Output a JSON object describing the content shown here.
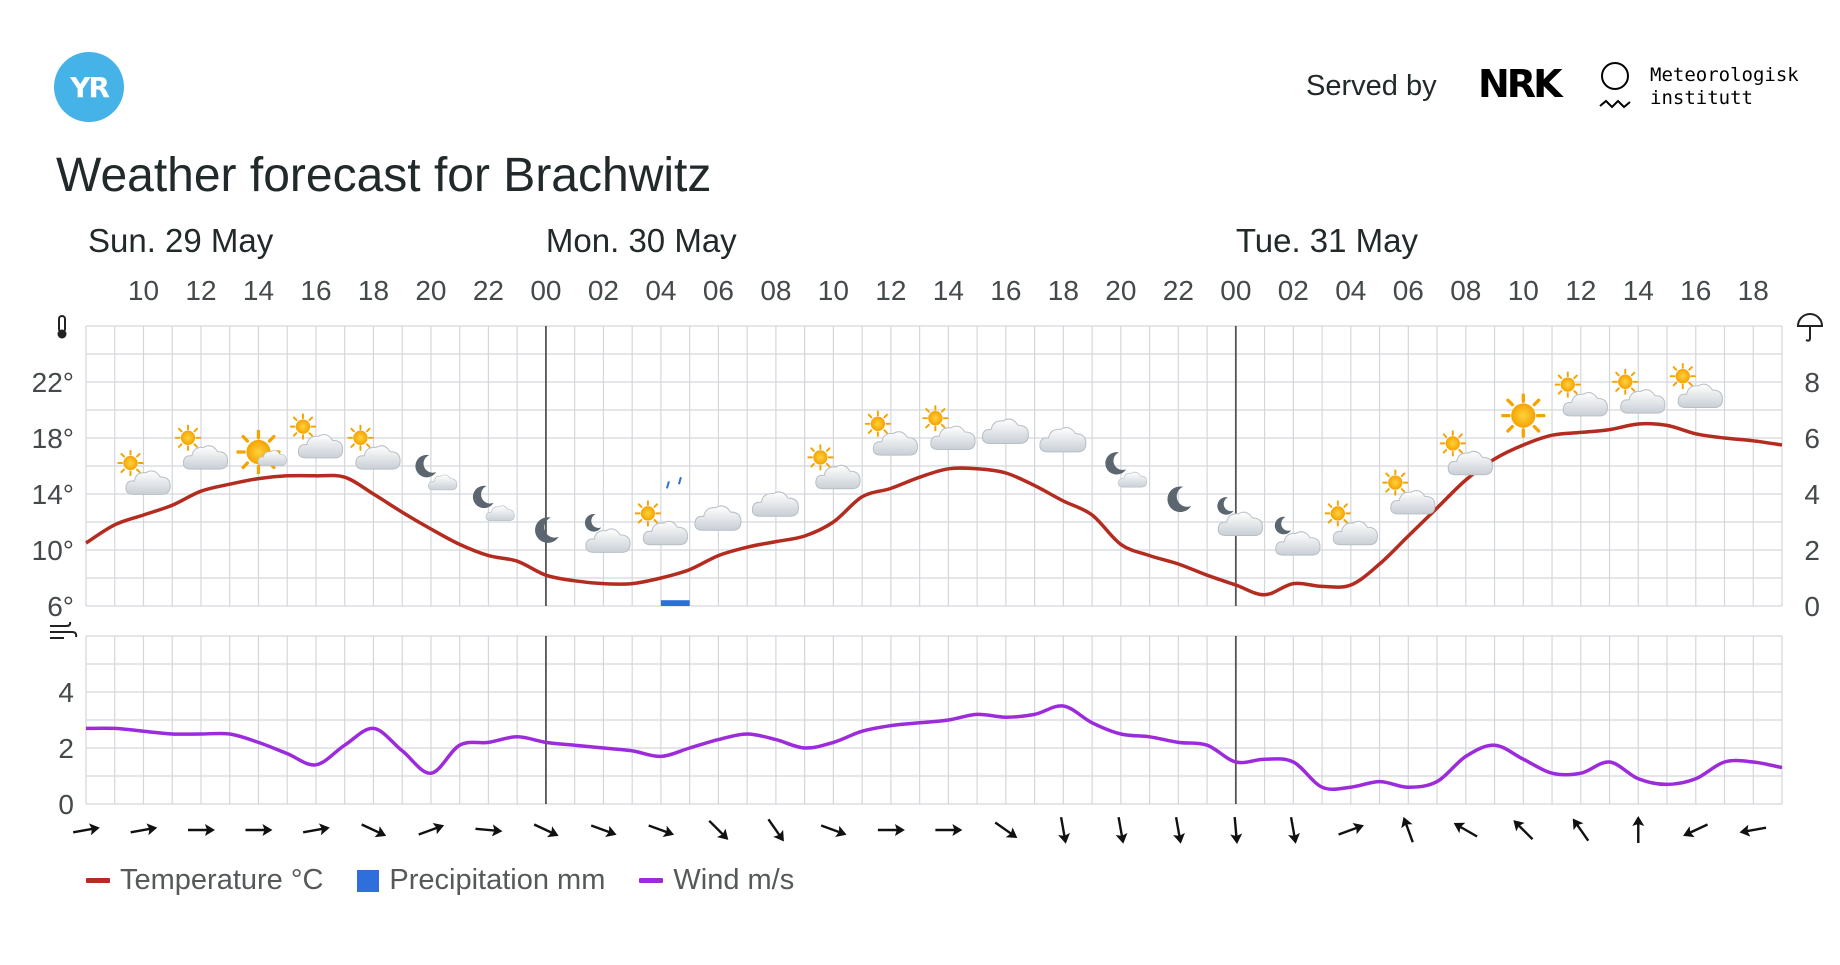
{
  "header": {
    "logo_text": "YR",
    "served_by": "Served by",
    "nrk_logo": "NRK",
    "met_lines": [
      "Meteorologisk",
      "institutt"
    ]
  },
  "title": "Weather forecast for Brachwitz",
  "legend": [
    {
      "label": "Temperature °C",
      "color": "#b42b20",
      "kind": "line"
    },
    {
      "label": "Precipitation mm",
      "color": "#2e6fdb",
      "kind": "box"
    },
    {
      "label": "Wind m/s",
      "color": "#9c2bdb",
      "kind": "line"
    }
  ],
  "chart_data": {
    "type": "line",
    "days": [
      {
        "label": "Sun. 29 May",
        "hour": 9
      },
      {
        "label": "Mon. 30 May",
        "hour": 24
      },
      {
        "label": "Tue. 31 May",
        "hour": 48
      }
    ],
    "hour_range": [
      8,
      67
    ],
    "hour_ticks": [
      "10",
      "12",
      "14",
      "16",
      "18",
      "20",
      "22",
      "00",
      "02",
      "04",
      "06",
      "08",
      "10",
      "12",
      "14",
      "16",
      "18",
      "20",
      "22",
      "00",
      "02",
      "04",
      "06",
      "08",
      "10",
      "12",
      "14",
      "16",
      "18"
    ],
    "temperature": {
      "name": "Temperature °C",
      "ylim": [
        6,
        26
      ],
      "y_ticks": [
        "22°",
        "18°",
        "14°",
        "10°",
        "6°"
      ],
      "x": [
        8,
        9,
        10,
        11,
        12,
        13,
        14,
        15,
        16,
        17,
        18,
        19,
        20,
        21,
        22,
        23,
        24,
        25,
        26,
        27,
        28,
        29,
        30,
        31,
        32,
        33,
        34,
        35,
        36,
        37,
        38,
        39,
        40,
        41,
        42,
        43,
        44,
        45,
        46,
        47,
        48,
        49,
        50,
        51,
        52,
        53,
        54,
        55,
        56,
        57,
        58,
        59,
        60,
        61,
        62,
        63,
        64,
        65,
        66,
        67
      ],
      "values": [
        10.5,
        11.8,
        12.5,
        13.2,
        14.2,
        14.7,
        15.1,
        15.3,
        15.3,
        15.2,
        14.0,
        12.7,
        11.5,
        10.4,
        9.6,
        9.2,
        8.2,
        7.8,
        7.6,
        7.6,
        8.0,
        8.6,
        9.6,
        10.2,
        10.6,
        11.0,
        12.0,
        13.8,
        14.4,
        15.2,
        15.8,
        15.8,
        15.5,
        14.6,
        13.5,
        12.5,
        10.4,
        9.6,
        9.0,
        8.2,
        7.5,
        6.8,
        7.6,
        7.4,
        7.5,
        9.0,
        11.0,
        13.0,
        15.0,
        16.5,
        17.5,
        18.2,
        18.4,
        18.6,
        19.0,
        18.9,
        18.3,
        18.0,
        17.8,
        17.5
      ]
    },
    "precipitation": {
      "name": "Precipitation mm",
      "ylim": [
        0,
        10
      ],
      "y_ticks": [
        "8",
        "6",
        "4",
        "2",
        "0"
      ],
      "bars": [
        {
          "x": 28.5,
          "width_hours": 1,
          "value": 0.1
        }
      ]
    },
    "wind": {
      "name": "Wind m/s",
      "ylim": [
        0,
        6
      ],
      "y_ticks": [
        "4",
        "2",
        "0"
      ],
      "x": [
        8,
        9,
        10,
        11,
        12,
        13,
        14,
        15,
        16,
        17,
        18,
        19,
        20,
        21,
        22,
        23,
        24,
        25,
        26,
        27,
        28,
        29,
        30,
        31,
        32,
        33,
        34,
        35,
        36,
        37,
        38,
        39,
        40,
        41,
        42,
        43,
        44,
        45,
        46,
        47,
        48,
        49,
        50,
        51,
        52,
        53,
        54,
        55,
        56,
        57,
        58,
        59,
        60,
        61,
        62,
        63,
        64,
        65,
        66,
        67
      ],
      "values": [
        2.7,
        2.7,
        2.6,
        2.5,
        2.5,
        2.5,
        2.2,
        1.8,
        1.4,
        2.1,
        2.7,
        1.9,
        1.1,
        2.1,
        2.2,
        2.4,
        2.2,
        2.1,
        2.0,
        1.9,
        1.7,
        2.0,
        2.3,
        2.5,
        2.3,
        2.0,
        2.2,
        2.6,
        2.8,
        2.9,
        3.0,
        3.2,
        3.1,
        3.2,
        3.5,
        2.9,
        2.5,
        2.4,
        2.2,
        2.1,
        1.5,
        1.6,
        1.5,
        0.6,
        0.6,
        0.8,
        0.6,
        0.8,
        1.7,
        2.1,
        1.6,
        1.1,
        1.1,
        1.5,
        0.9,
        0.7,
        0.9,
        1.5,
        1.5,
        1.3
      ]
    },
    "symbols": [
      {
        "x": 10,
        "temp": 15.0,
        "icon": "partly-cloudy-day"
      },
      {
        "x": 12,
        "temp": 16.8,
        "icon": "partly-cloudy-day"
      },
      {
        "x": 14,
        "temp": 17.0,
        "icon": "fair-day"
      },
      {
        "x": 16,
        "temp": 17.6,
        "icon": "partly-cloudy-day"
      },
      {
        "x": 18,
        "temp": 16.8,
        "icon": "partly-cloudy-day"
      },
      {
        "x": 20,
        "temp": 15.4,
        "icon": "fair-night"
      },
      {
        "x": 22,
        "temp": 13.2,
        "icon": "fair-night"
      },
      {
        "x": 24,
        "temp": 11.4,
        "icon": "clear-night"
      },
      {
        "x": 26,
        "temp": 11.0,
        "icon": "partly-cloudy-night"
      },
      {
        "x": 28,
        "temp": 11.4,
        "icon": "partly-cloudy-day"
      },
      {
        "x": 30,
        "temp": 12.4,
        "icon": "cloudy"
      },
      {
        "x": 32,
        "temp": 13.4,
        "icon": "cloudy"
      },
      {
        "x": 34,
        "temp": 15.4,
        "icon": "partly-cloudy-day"
      },
      {
        "x": 36,
        "temp": 17.8,
        "icon": "partly-cloudy-day"
      },
      {
        "x": 38,
        "temp": 18.2,
        "icon": "partly-cloudy-day"
      },
      {
        "x": 40,
        "temp": 18.6,
        "icon": "cloudy"
      },
      {
        "x": 42,
        "temp": 18.0,
        "icon": "cloudy"
      },
      {
        "x": 44,
        "temp": 15.6,
        "icon": "fair-night"
      },
      {
        "x": 46,
        "temp": 13.6,
        "icon": "clear-night"
      },
      {
        "x": 48,
        "temp": 12.2,
        "icon": "partly-cloudy-night"
      },
      {
        "x": 50,
        "temp": 10.8,
        "icon": "partly-cloudy-night"
      },
      {
        "x": 52,
        "temp": 11.4,
        "icon": "partly-cloudy-day"
      },
      {
        "x": 54,
        "temp": 13.6,
        "icon": "partly-cloudy-day"
      },
      {
        "x": 56,
        "temp": 16.4,
        "icon": "partly-cloudy-day"
      },
      {
        "x": 58,
        "temp": 19.6,
        "icon": "fair-day"
      },
      {
        "x": 60,
        "temp": 20.6,
        "icon": "partly-cloudy-day"
      },
      {
        "x": 62,
        "temp": 20.8,
        "icon": "partly-cloudy-day"
      },
      {
        "x": 64,
        "temp": 21.2,
        "icon": "partly-cloudy-day"
      }
    ],
    "wind_directions": [
      {
        "x": 8,
        "angle": -10
      },
      {
        "x": 10,
        "angle": -10
      },
      {
        "x": 12,
        "angle": 0
      },
      {
        "x": 14,
        "angle": 0
      },
      {
        "x": 16,
        "angle": -10
      },
      {
        "x": 18,
        "angle": 25
      },
      {
        "x": 20,
        "angle": -20
      },
      {
        "x": 22,
        "angle": 5
      },
      {
        "x": 24,
        "angle": 25
      },
      {
        "x": 26,
        "angle": 20
      },
      {
        "x": 28,
        "angle": 20
      },
      {
        "x": 30,
        "angle": 45
      },
      {
        "x": 32,
        "angle": 55
      },
      {
        "x": 34,
        "angle": 20
      },
      {
        "x": 36,
        "angle": 0
      },
      {
        "x": 38,
        "angle": 0
      },
      {
        "x": 40,
        "angle": 35
      },
      {
        "x": 42,
        "angle": 80
      },
      {
        "x": 44,
        "angle": 80
      },
      {
        "x": 46,
        "angle": 80
      },
      {
        "x": 48,
        "angle": 85
      },
      {
        "x": 50,
        "angle": 80
      },
      {
        "x": 52,
        "angle": -20
      },
      {
        "x": 54,
        "angle": -110
      },
      {
        "x": 56,
        "angle": -150
      },
      {
        "x": 58,
        "angle": -135
      },
      {
        "x": 60,
        "angle": -125
      },
      {
        "x": 62,
        "angle": -90
      },
      {
        "x": 64,
        "angle": 155
      },
      {
        "x": 66,
        "angle": 170
      }
    ],
    "grid": true
  }
}
